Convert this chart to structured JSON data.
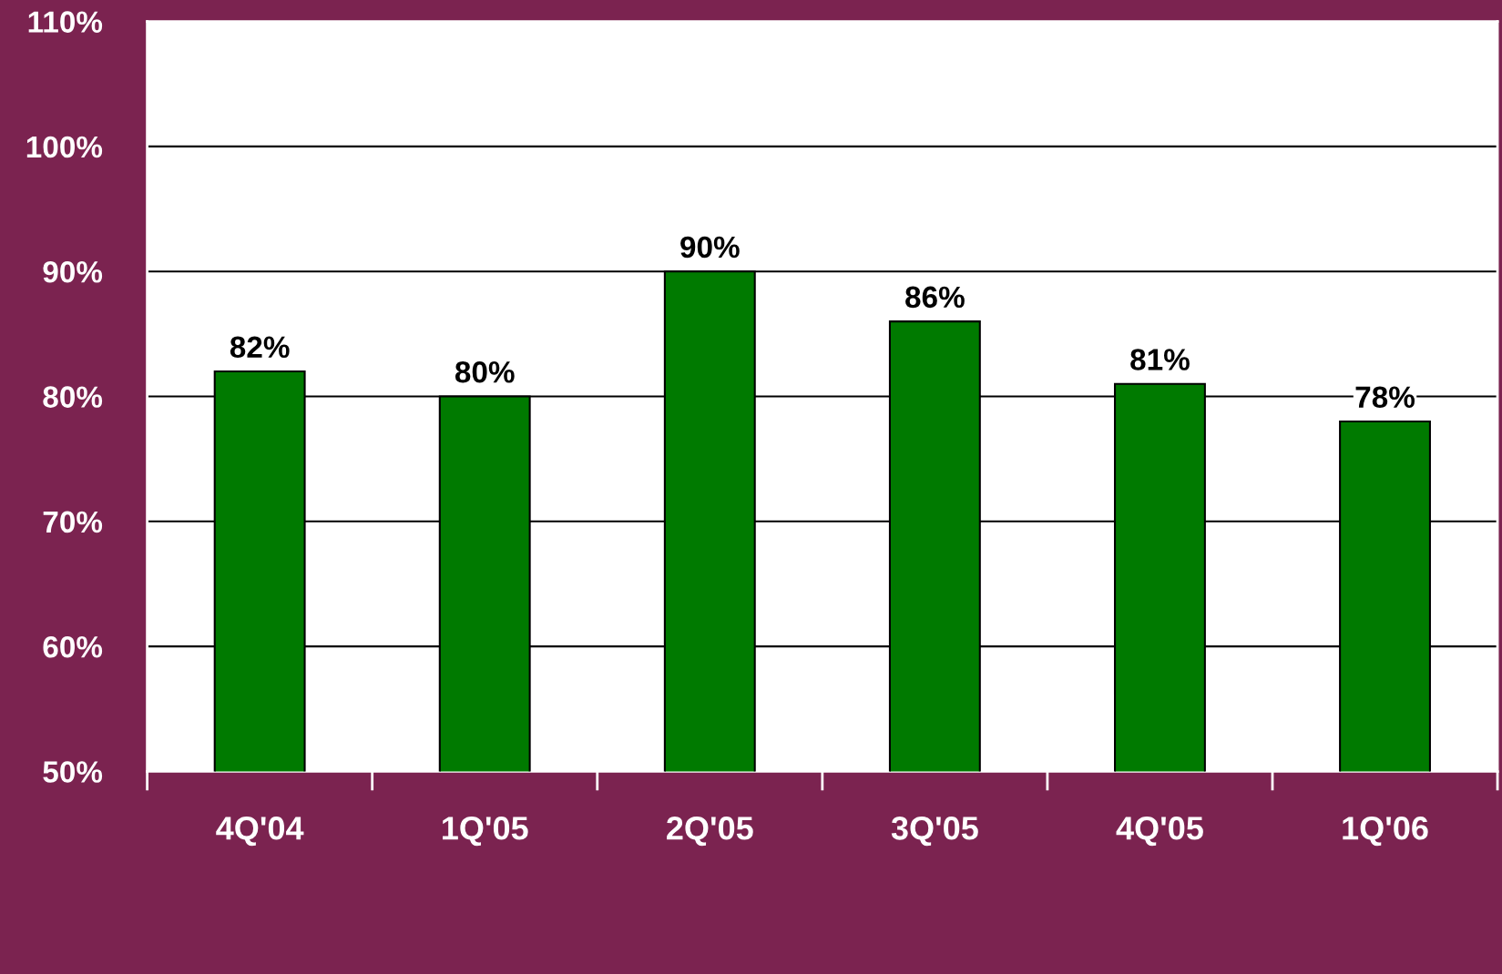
{
  "chart_data": {
    "type": "bar",
    "categories": [
      "4Q'04",
      "1Q'05",
      "2Q'05",
      "3Q'05",
      "4Q'05",
      "1Q'06"
    ],
    "values": [
      82,
      80,
      90,
      86,
      81,
      78
    ],
    "color": "#007a00",
    "value_labels": [
      "82%",
      "80%",
      "90%",
      "86%",
      "81%",
      "78%"
    ],
    "ylim": [
      50,
      110
    ],
    "yticks": [
      {
        "value": 50,
        "label": "50%"
      },
      {
        "value": 60,
        "label": "60%"
      },
      {
        "value": 70,
        "label": "70%"
      },
      {
        "value": 80,
        "label": "80%"
      },
      {
        "value": 90,
        "label": "90%"
      },
      {
        "value": 100,
        "label": "100%"
      },
      {
        "value": 110,
        "label": "110%"
      }
    ],
    "grid": "y"
  }
}
